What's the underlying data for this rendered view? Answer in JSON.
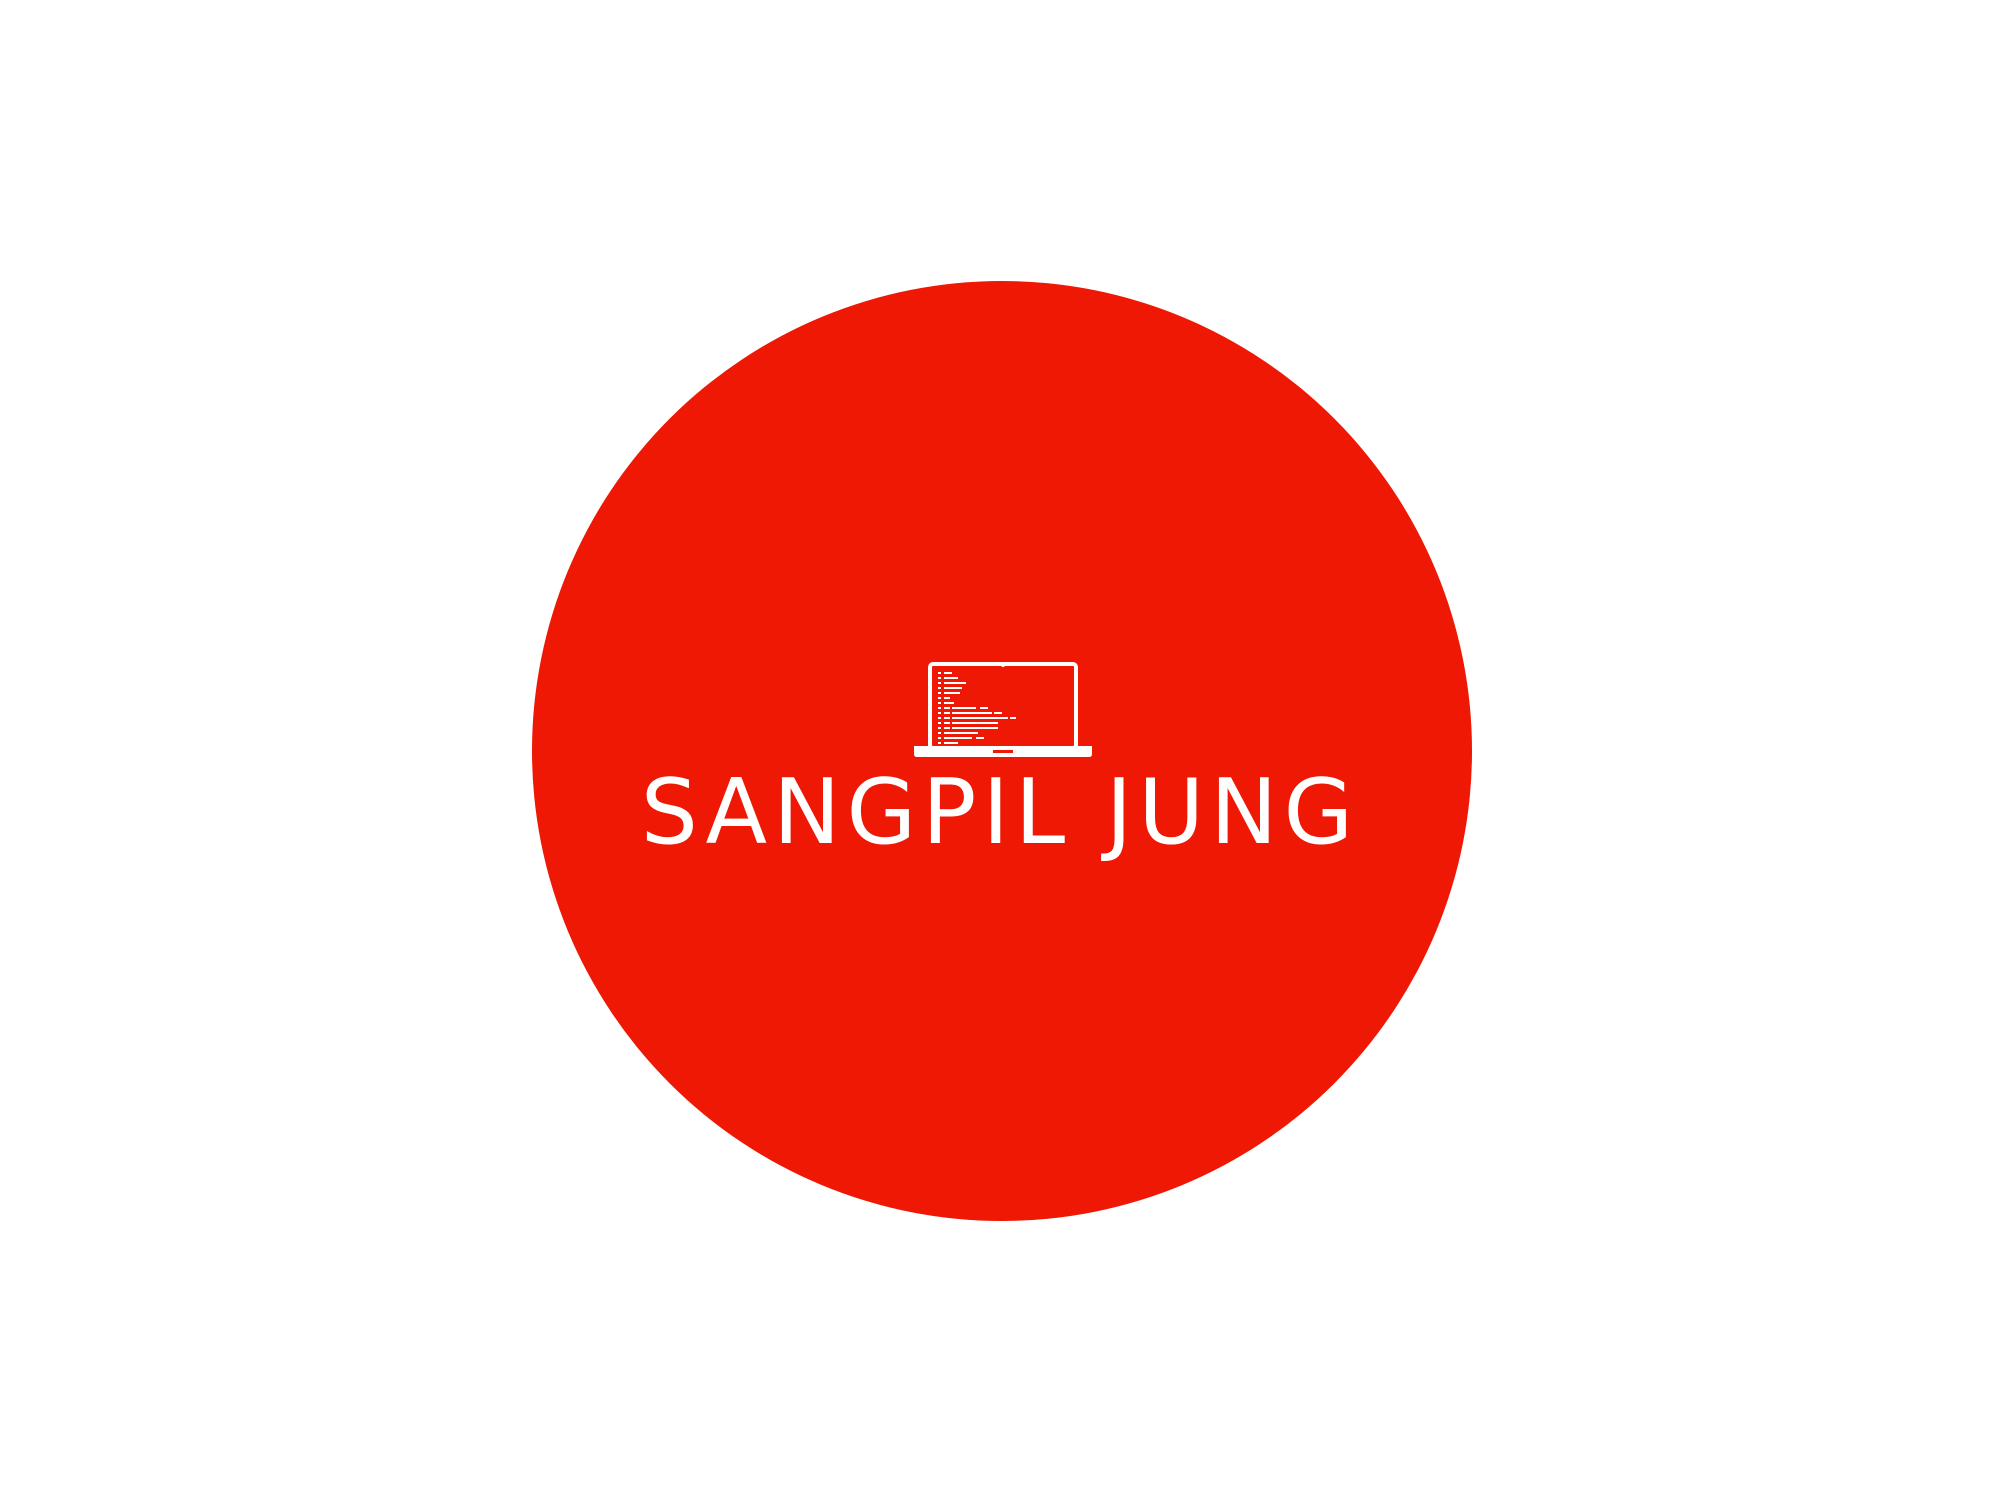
{
  "logo": {
    "name": "SANGPIL JUNG",
    "icon": "laptop-code-icon"
  },
  "colors": {
    "background": "#ffffff",
    "circle": "#ee1804",
    "foreground": "#ffffff"
  }
}
